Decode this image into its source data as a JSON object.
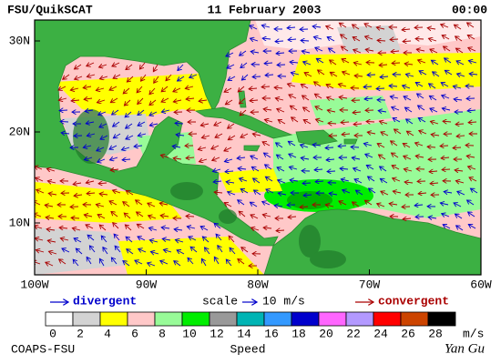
{
  "header": {
    "title": "FSU/QuikSCAT",
    "date": "11 February 2003",
    "time": "00:00"
  },
  "map": {
    "lat_labels": [
      "30N",
      "20N",
      "10N"
    ],
    "lon_labels": [
      "100W",
      "90W",
      "80W",
      "70W",
      "60W"
    ]
  },
  "legend": {
    "divergent": "divergent",
    "scale": "scale",
    "scale_value": "10 m/s",
    "convergent": "convergent",
    "divergent_color": "#0000cc",
    "convergent_color": "#aa0000"
  },
  "colorbar": {
    "label": "Speed",
    "unit": "m/s",
    "ticks": [
      0,
      2,
      4,
      6,
      8,
      10,
      12,
      14,
      16,
      18,
      20,
      22,
      24,
      26,
      28
    ],
    "colors": [
      "#ffffff",
      "#d3d3d3",
      "#ffff00",
      "#ffc8c8",
      "#98fb98",
      "#00ee00",
      "#999999",
      "#00b4b4",
      "#3399ff",
      "#0000cc",
      "#ff66ff",
      "#b399ff",
      "#ff0000",
      "#cc4400",
      "#000000"
    ]
  },
  "footer": {
    "source": "COAPS-FSU",
    "signature": "Yan Gu"
  }
}
